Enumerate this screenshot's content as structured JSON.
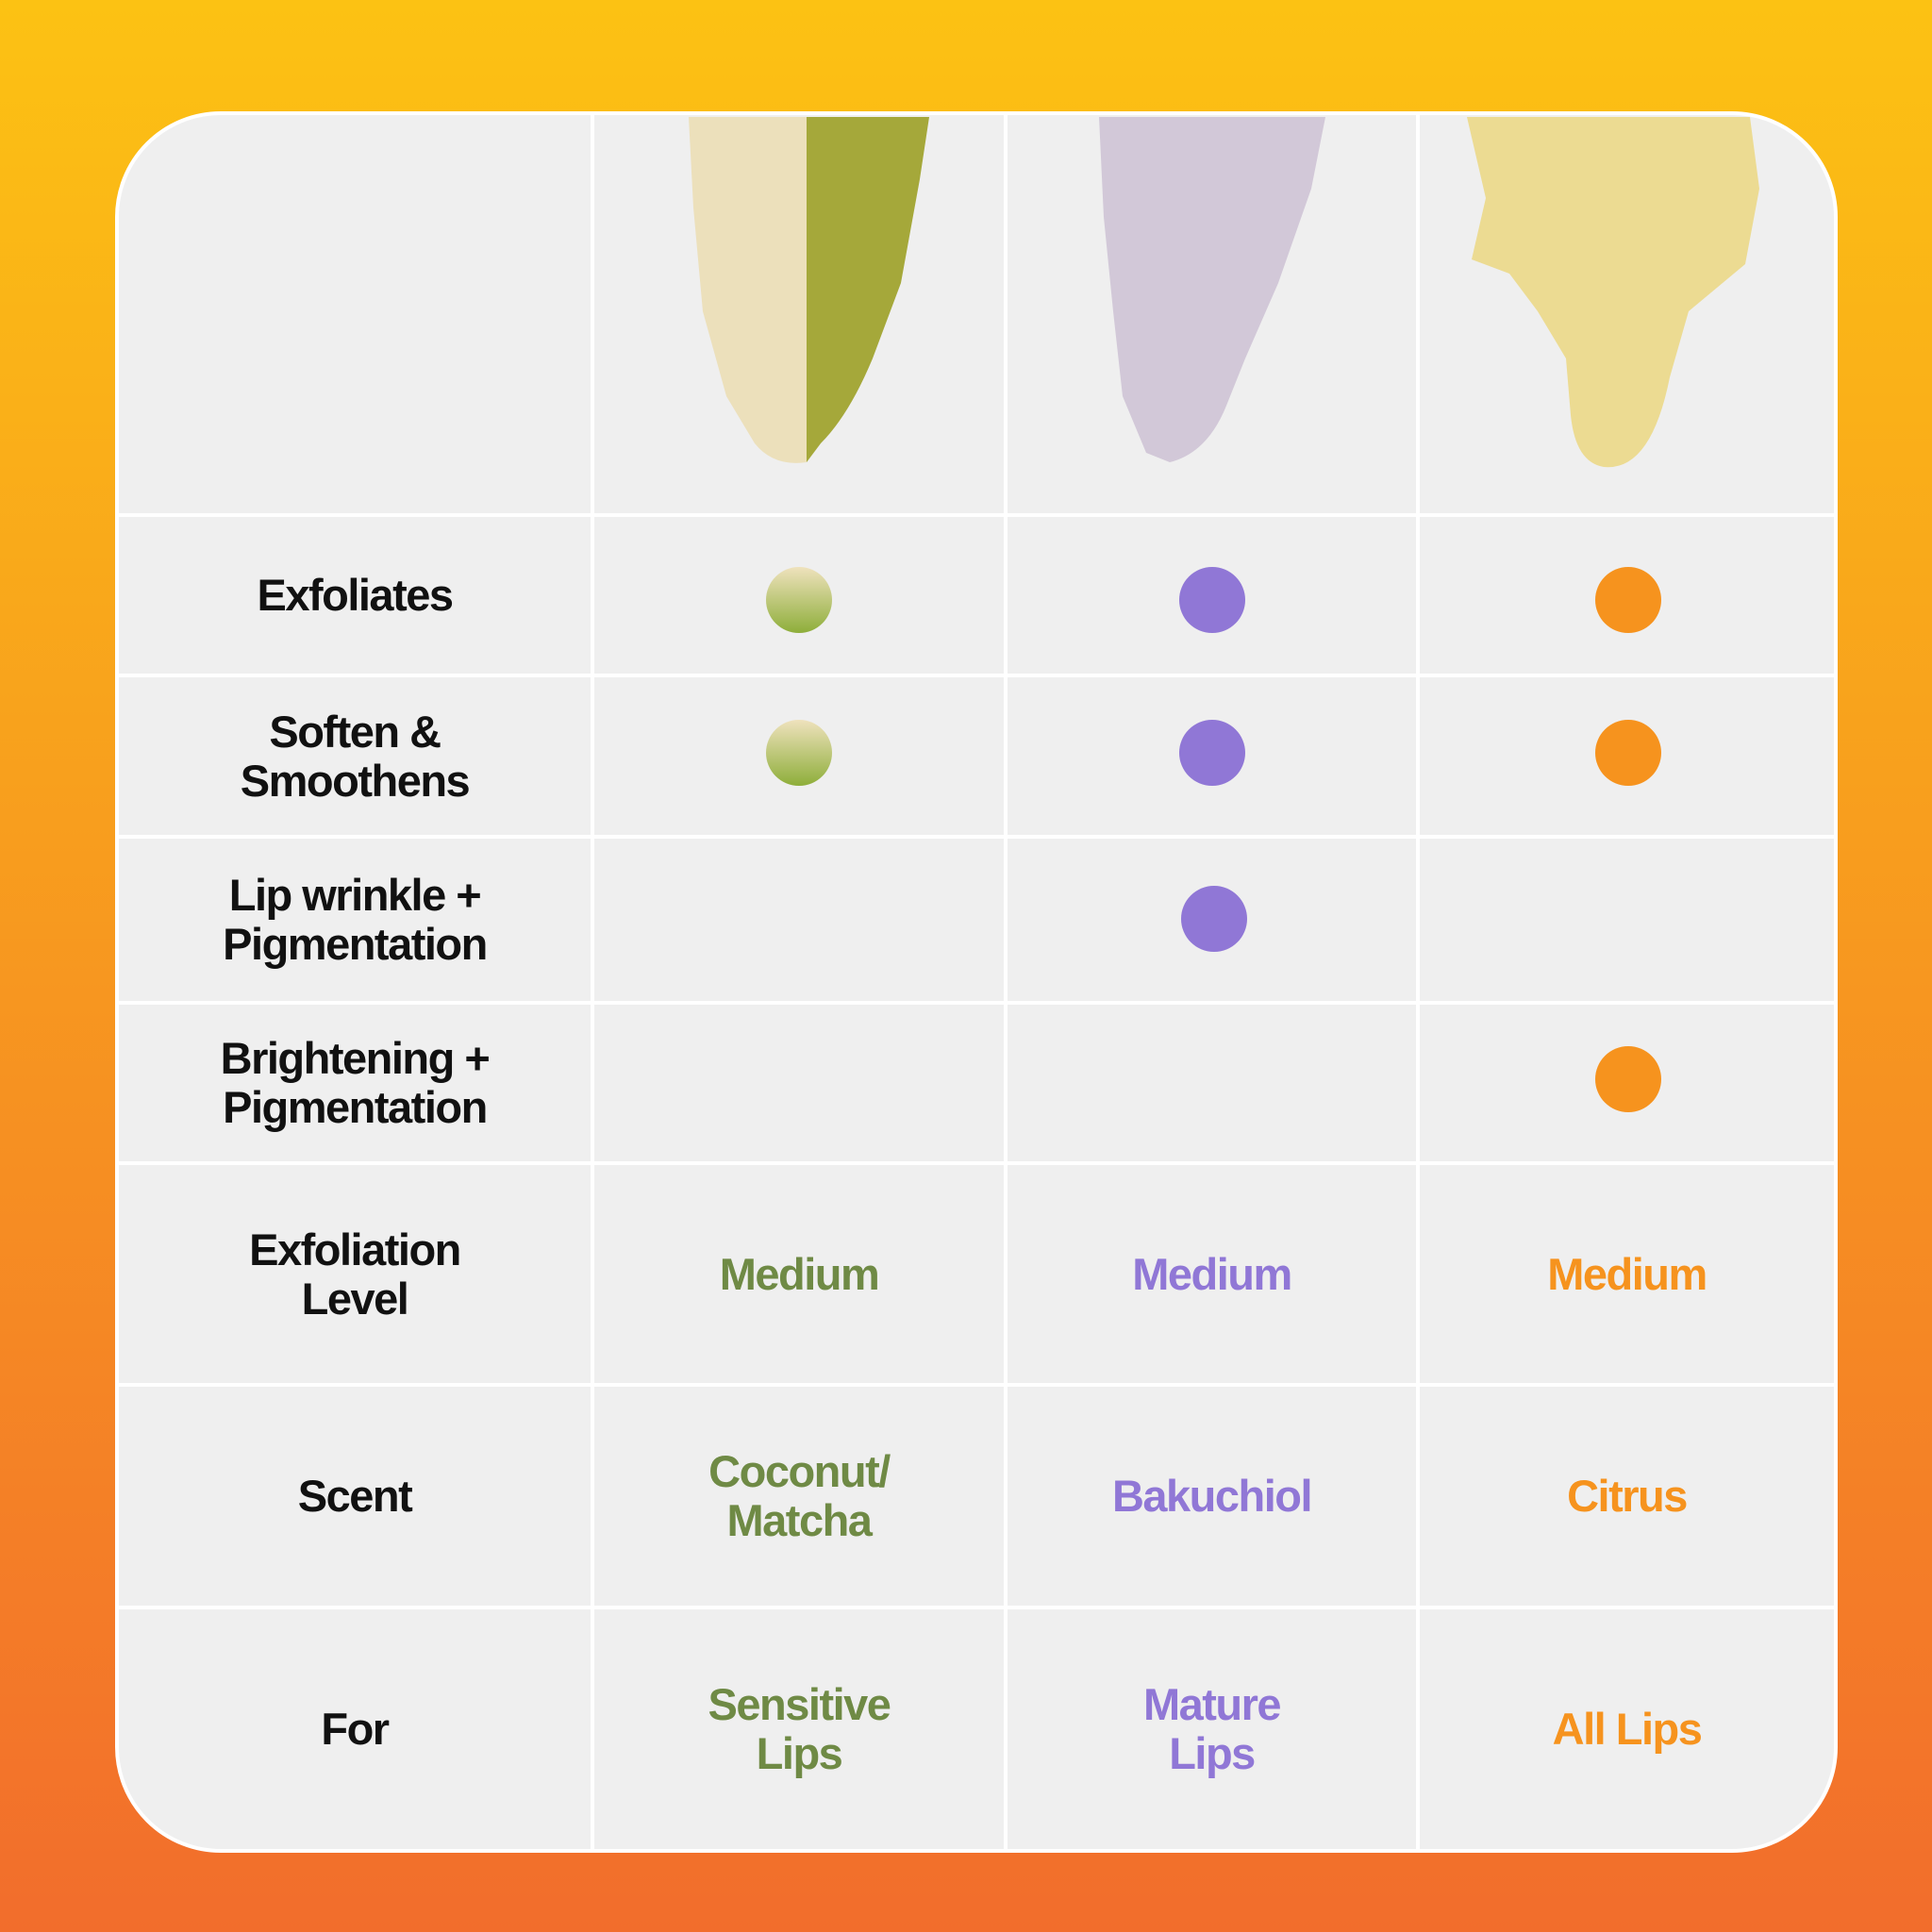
{
  "features": [
    "Exfoliates",
    "Soften &\nSmoothens",
    "Lip wrinkle +\nPigmentation",
    "Brightening +\nPigmentation"
  ],
  "attributes": [
    {
      "label": "Exfoliation\nLevel",
      "values": [
        "Medium",
        "Medium",
        "Medium"
      ]
    },
    {
      "label": "Scent",
      "values": [
        "Coconut/\nMatcha",
        "Bakuchiol",
        "Citrus"
      ]
    },
    {
      "label": "For",
      "values": [
        "Sensitive\nLips",
        "Mature\nLips",
        "All Lips"
      ]
    }
  ]
}
